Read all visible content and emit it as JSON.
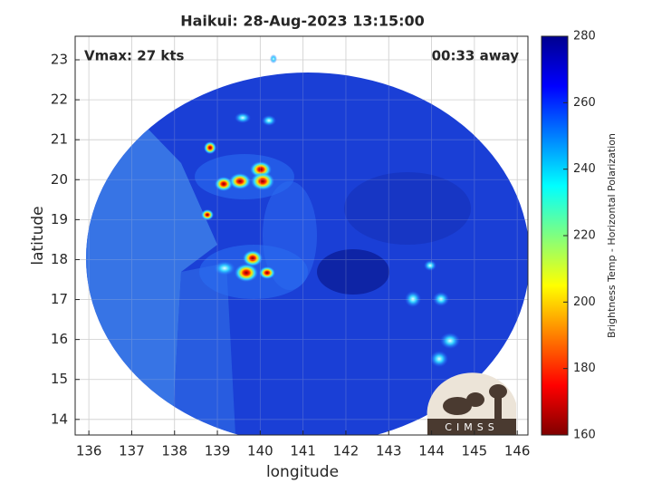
{
  "chart_data": {
    "type": "map",
    "title": "Haikui: 28-Aug-2023 13:15:00",
    "annotations": [
      "Vmax: 27 kts",
      "00:33 away"
    ],
    "xlabel": "longitude",
    "ylabel": "latitude",
    "xlim": [
      135.68,
      146.25
    ],
    "xticks": [
      136,
      137,
      138,
      139,
      140,
      141,
      142,
      143,
      144,
      145,
      146
    ],
    "ylim": [
      13.61,
      23.59
    ],
    "yticks": [
      14,
      15,
      16,
      17,
      18,
      19,
      20,
      21,
      22,
      23
    ],
    "grid": true,
    "colorbar": {
      "label": "Brightness Temp - Horizontal Polarization",
      "lim": [
        160,
        280
      ],
      "ticks": [
        160,
        180,
        200,
        220,
        240,
        260,
        280
      ],
      "colormap": "jet"
    },
    "logo": "CIMSS"
  }
}
